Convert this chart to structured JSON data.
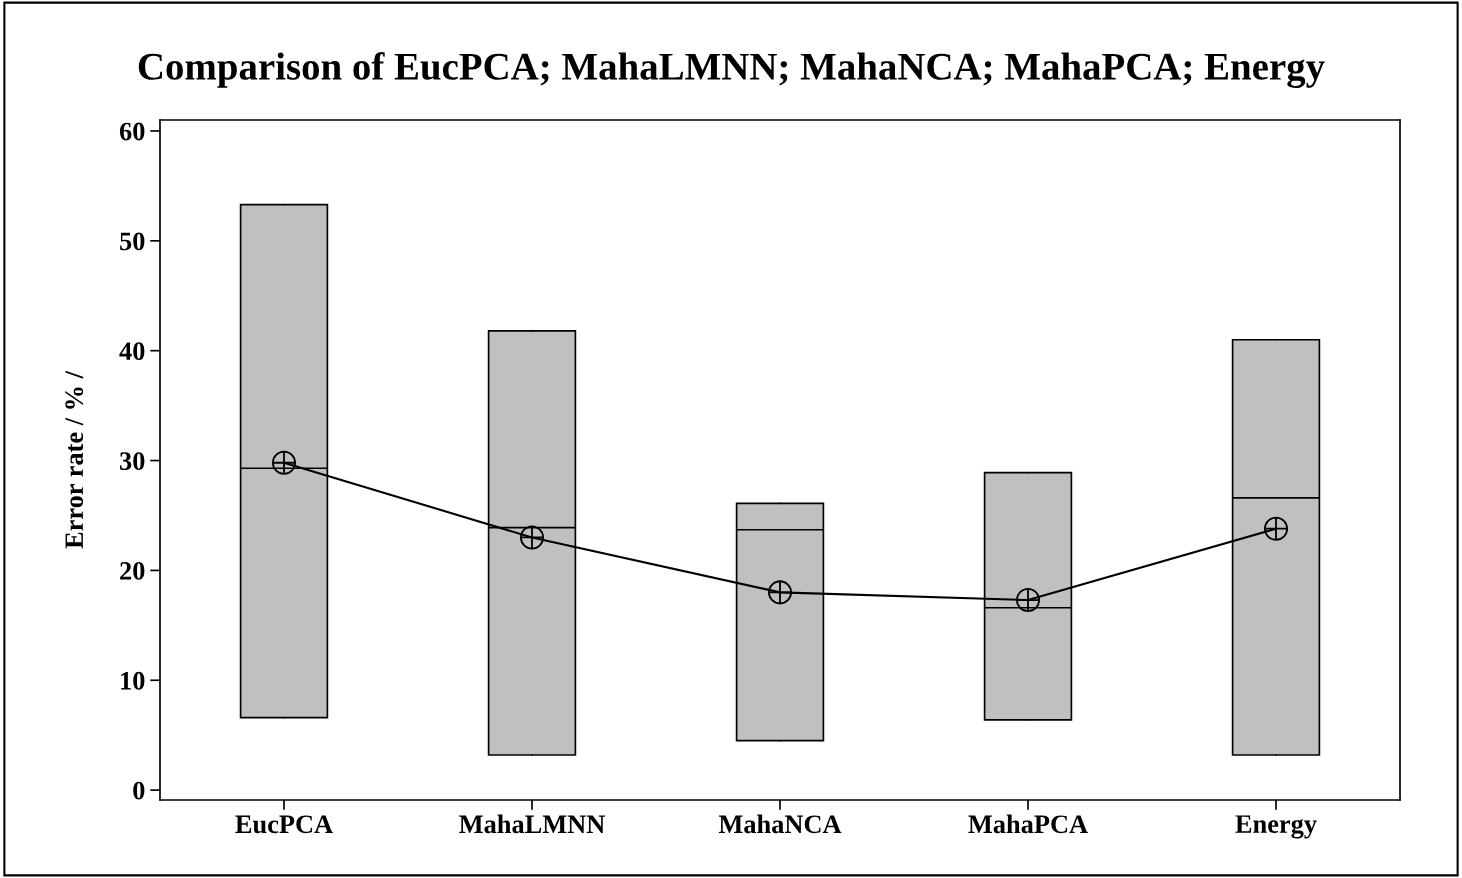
{
  "chart_data": {
    "type": "box",
    "title": "Comparison of EucPCA; MahaLMNN; MahaNCA; MahaPCA; Energy",
    "ylabel": "Error rate / % /",
    "categories": [
      "EucPCA",
      "MahaLMNN",
      "MahaNCA",
      "MahaPCA",
      "Energy"
    ],
    "boxes": [
      {
        "low": 6.6,
        "q1": 6.6,
        "median": 29.3,
        "q3": 53.3,
        "high": 53.3
      },
      {
        "low": 3.2,
        "q1": 3.2,
        "median": 23.9,
        "q3": 41.8,
        "high": 41.8
      },
      {
        "low": 4.5,
        "q1": 4.5,
        "median": 23.7,
        "q3": 26.1,
        "high": 26.1
      },
      {
        "low": 6.4,
        "q1": 6.4,
        "median": 16.6,
        "q3": 28.9,
        "high": 28.9
      },
      {
        "low": 3.2,
        "q1": 3.2,
        "median": 26.6,
        "q3": 41.0,
        "high": 41.0
      }
    ],
    "color": "#c0c0c0",
    "series": [
      {
        "type": "line",
        "color": "#000000",
        "marker": "circle",
        "values": [
          29.8,
          23.0,
          18.0,
          17.3,
          23.8
        ]
      }
    ],
    "ylim": [
      -0.9,
      61
    ],
    "yticks": [
      0,
      10,
      20,
      30,
      40,
      50,
      60
    ],
    "grid": false,
    "legend": false
  }
}
